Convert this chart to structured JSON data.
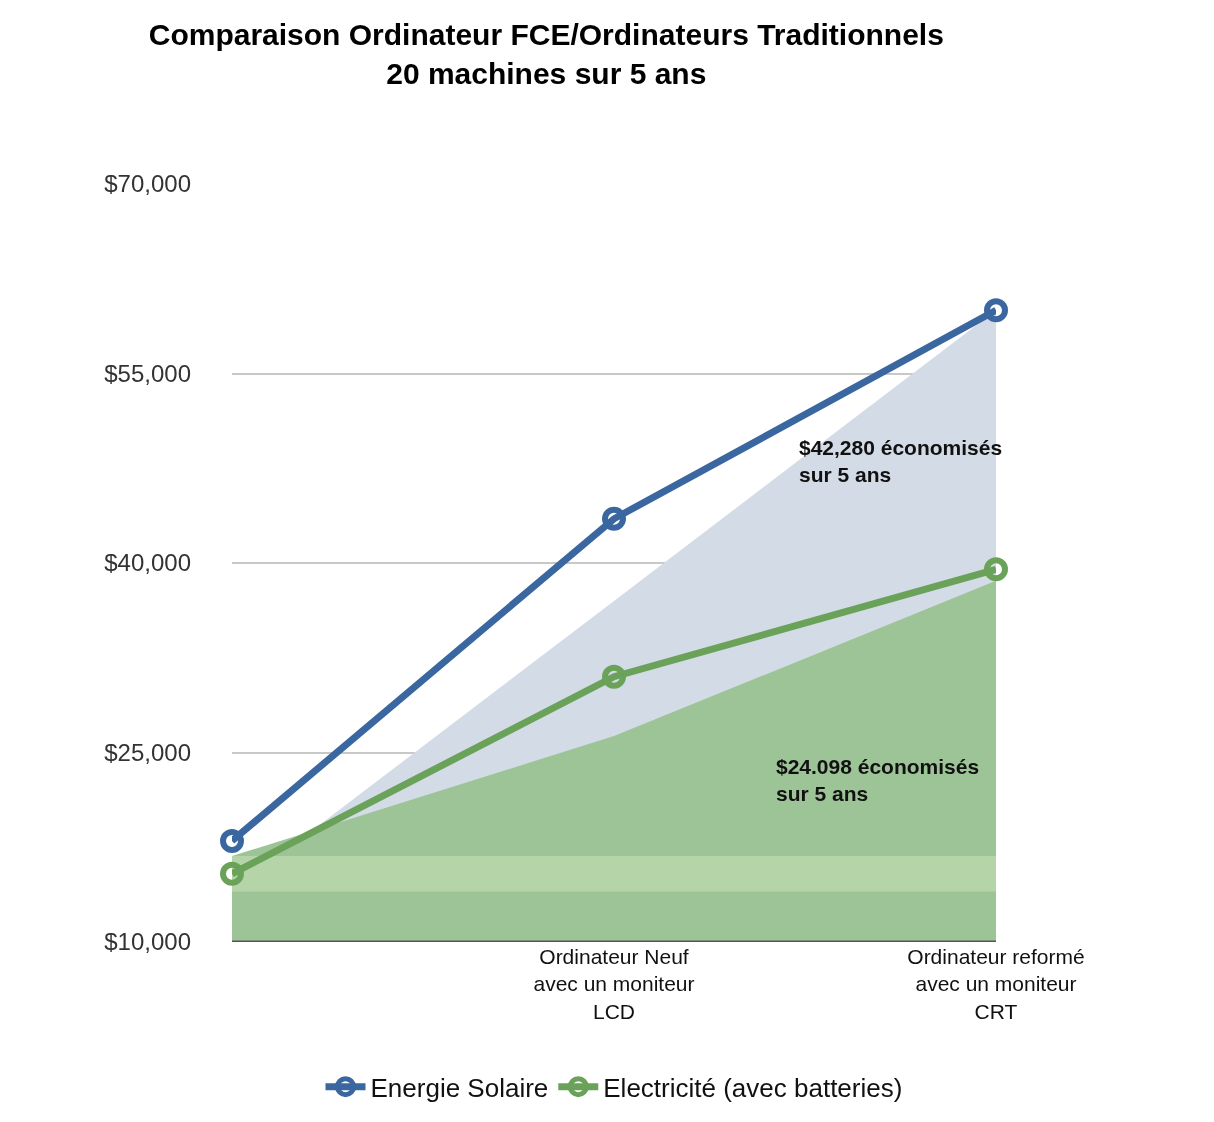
{
  "chart_data": {
    "type": "line",
    "title": "Comparaison Ordinateur FCE/Ordinateurs Traditionnels\n20 machines sur 5 ans",
    "categories": [
      null,
      "Ordinateur Neuf\navec un moniteur\nLCD",
      "Ordinateur reformé\navec un moniteur\nCRT"
    ],
    "series": [
      {
        "type": "area",
        "color": "#d3dbe6",
        "values": [
          14000,
          37000,
          60000
        ]
      },
      {
        "type": "area",
        "color": "#9dc496",
        "values": [
          16800,
          26300,
          38600
        ]
      },
      {
        "name": "Energie Solaire",
        "color": "#3b67a0",
        "marker": "circle",
        "values": [
          18000,
          43500,
          60000
        ]
      },
      {
        "name": "Electricité (avec batteries)",
        "color": "#6aa25a",
        "marker": "circle",
        "values": [
          15400,
          31000,
          39500
        ]
      }
    ],
    "bands": [
      {
        "axis": "y",
        "from": 14000,
        "to": 16800,
        "color": "#b5d5a8"
      }
    ],
    "ylim": [
      10000,
      70000
    ],
    "yticks": [
      {
        "value": 10000,
        "label": "$10,000"
      },
      {
        "value": 25000,
        "label": "$25,000"
      },
      {
        "value": 40000,
        "label": "$40,000"
      },
      {
        "value": 55000,
        "label": "$55,000"
      },
      {
        "value": 70000,
        "label": "$70,000"
      }
    ],
    "grid": "y",
    "legend": "bottom",
    "line_style": "solid",
    "annotations": [
      "$42,280 économisés\nsur 5 ans",
      "$24.098 économisés\nsur 5 ans"
    ]
  }
}
